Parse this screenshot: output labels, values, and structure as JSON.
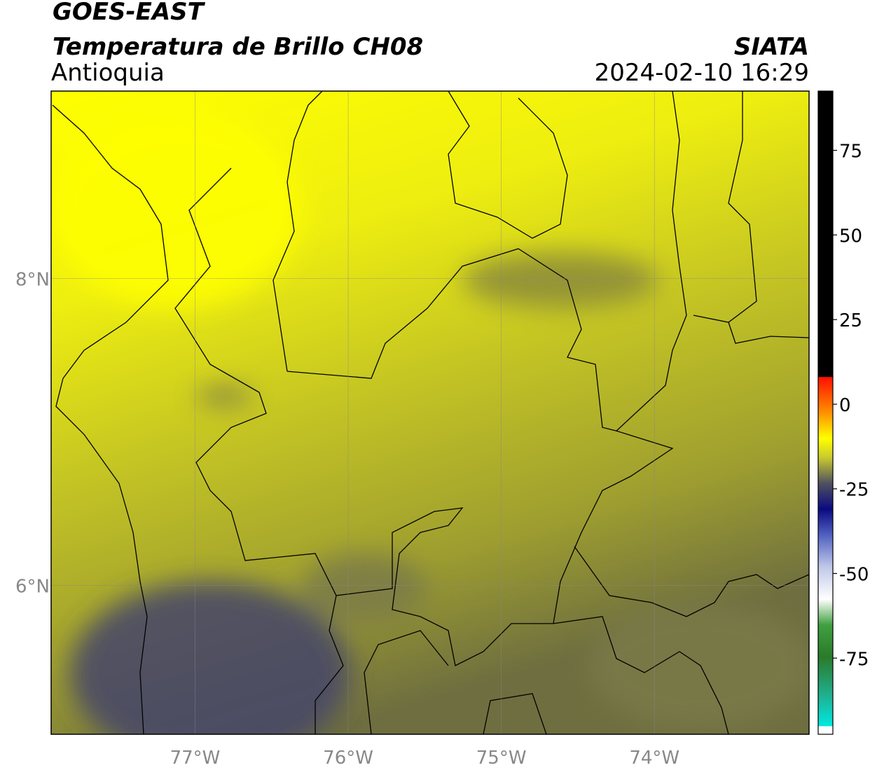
{
  "header": {
    "title": "GOES-EAST",
    "subtitle": "Temperatura de Brillo CH08",
    "region": "Antioquia",
    "source": "SIATA",
    "datetime": "2024-02-10 16:29"
  },
  "map": {
    "xlim": [
      -77.94,
      -72.99
    ],
    "ylim": [
      5.03,
      9.22
    ],
    "xticks": [
      {
        "value": -77,
        "label": "77°W"
      },
      {
        "value": -76,
        "label": "76°W"
      },
      {
        "value": -75,
        "label": "75°W"
      },
      {
        "value": -74,
        "label": "74°W"
      }
    ],
    "yticks": [
      {
        "value": 6,
        "label": "6°N"
      },
      {
        "value": 8,
        "label": "8°N"
      }
    ]
  },
  "colorbar": {
    "clim": [
      -97.5,
      92.5
    ],
    "ticks": [
      -75,
      -50,
      -25,
      0,
      25,
      50,
      75
    ]
  }
}
